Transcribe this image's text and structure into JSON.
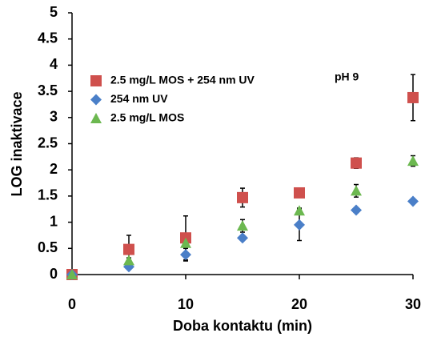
{
  "chart_data": {
    "type": "scatter",
    "x_label": "Doba kontaktu (min)",
    "y_label": "LOG inaktivace",
    "annotation": "pH 9",
    "x": [
      0,
      5,
      10,
      15,
      20,
      25,
      30
    ],
    "series": [
      {
        "name": "2.5 mg/L MOS + 254 nm UV",
        "color": "#cf504d",
        "marker": "square",
        "values": [
          0,
          0.48,
          0.7,
          1.47,
          1.56,
          2.13,
          3.38
        ],
        "errors": [
          0,
          0.27,
          0.42,
          0.18,
          0.05,
          0.1,
          0.44
        ]
      },
      {
        "name": "254 nm UV",
        "color": "#4a7fc8",
        "marker": "diamond",
        "values": [
          0,
          0.15,
          0.38,
          0.7,
          0.95,
          1.23,
          1.4
        ],
        "errors": [
          0,
          0.05,
          0.12,
          0.03,
          0.3,
          0.03,
          0.03
        ]
      },
      {
        "name": "2.5 mg/L MOS",
        "color": "#6cb850",
        "marker": "triangle",
        "values": [
          0,
          0.27,
          0.6,
          0.93,
          1.22,
          1.6,
          2.17
        ],
        "errors": [
          0,
          0.05,
          0.1,
          0.12,
          0.05,
          0.12,
          0.1
        ]
      }
    ],
    "xlim": [
      0,
      30
    ],
    "xticks": [
      0,
      10,
      20,
      30
    ],
    "ylim": [
      0,
      5
    ],
    "yticks": [
      0,
      0.5,
      1,
      1.5,
      2,
      2.5,
      3,
      3.5,
      4,
      4.5,
      5
    ],
    "grid": false
  }
}
